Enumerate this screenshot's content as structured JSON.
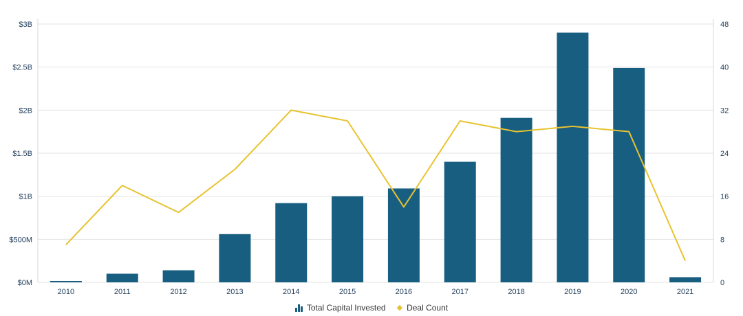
{
  "chart_data": {
    "type": "bar",
    "subtype": "combo-bar-line",
    "title": "",
    "categories": [
      "2010",
      "2011",
      "2012",
      "2013",
      "2014",
      "2015",
      "2016",
      "2017",
      "2018",
      "2019",
      "2020",
      "2021"
    ],
    "series": [
      {
        "name": "Total Capital Invested",
        "type": "bar",
        "axis": "left",
        "unit": "USD millions",
        "color": "#185e80",
        "values": [
          15,
          100,
          140,
          560,
          920,
          1000,
          1090,
          1400,
          1910,
          2900,
          2490,
          60
        ]
      },
      {
        "name": "Deal Count",
        "type": "line",
        "axis": "right",
        "unit": "deals",
        "color": "#e8c330",
        "values": [
          7,
          18,
          13,
          21,
          32,
          30,
          14,
          30,
          28,
          29,
          28,
          4
        ]
      }
    ],
    "left_axis": {
      "min": 0,
      "max": 3000,
      "tick_labels": [
        "$0M",
        "$500M",
        "$1B",
        "$1.5B",
        "$2B",
        "$2.5B",
        "$3B"
      ]
    },
    "right_axis": {
      "min": 0,
      "max": 48,
      "tick_labels": [
        "0",
        "8",
        "16",
        "24",
        "32",
        "40",
        "48"
      ]
    },
    "grid": "horizontal",
    "legend_position": "bottom-center"
  },
  "legend": {
    "items": [
      {
        "label": "Total Capital Invested",
        "marker": "bars",
        "color": "#185e80"
      },
      {
        "label": "Deal Count",
        "marker": "diamond",
        "color": "#e8c330"
      }
    ]
  },
  "colors": {
    "background": "#ffffff",
    "gridline": "#e3e3e3",
    "plot_border": "#d9d9d9",
    "axis_text": "#24405e",
    "legend_text": "#333333"
  }
}
